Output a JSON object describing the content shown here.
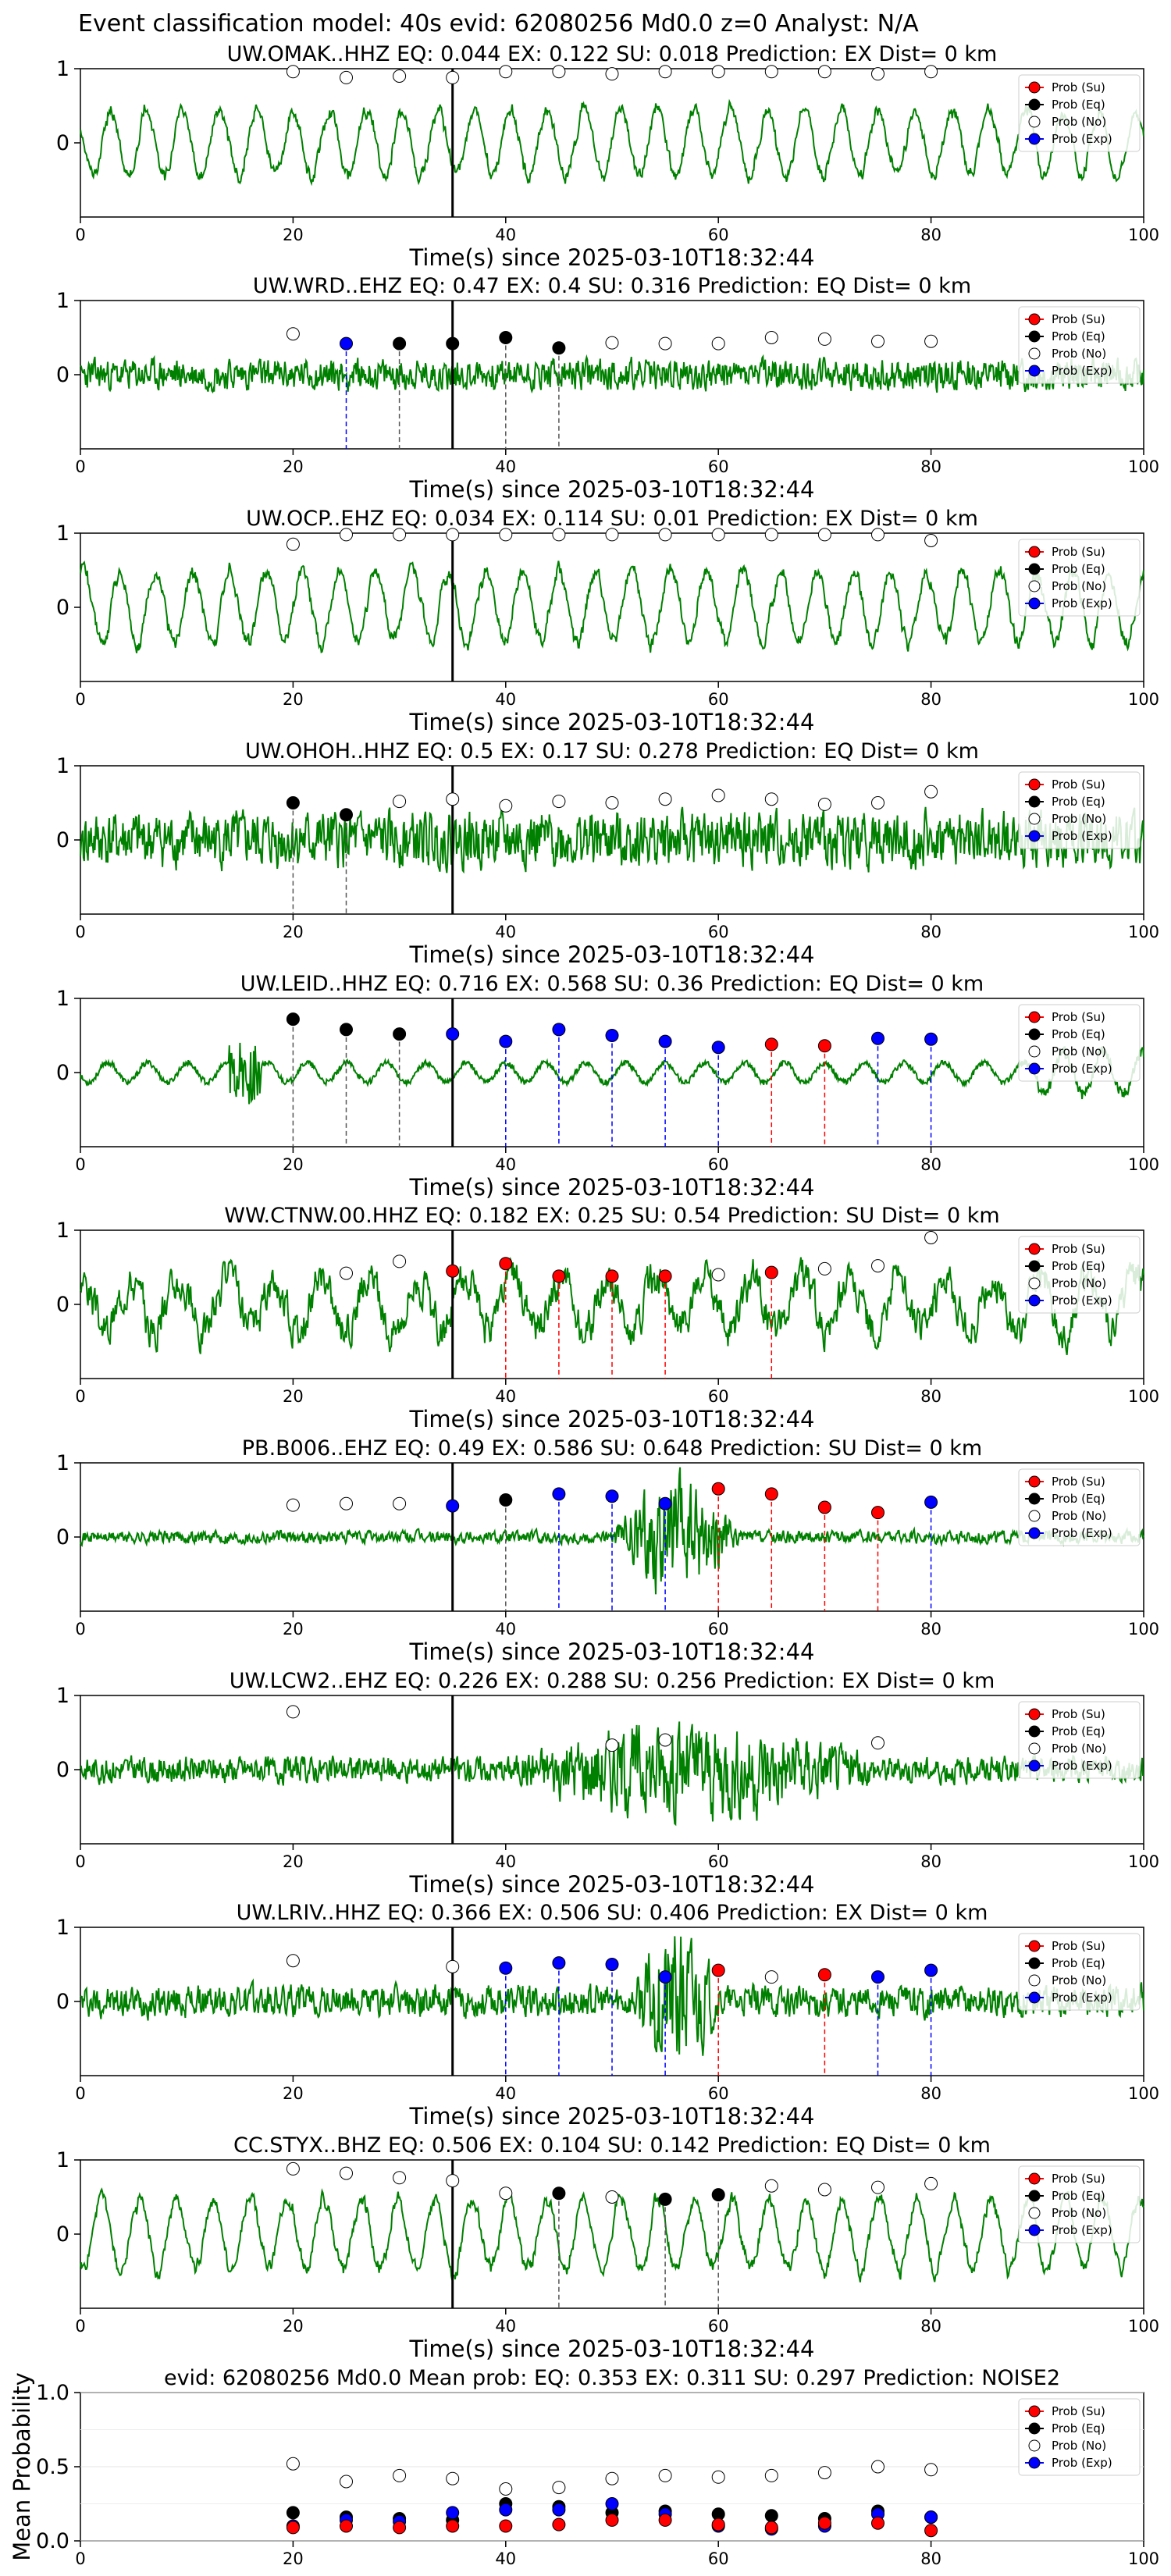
{
  "figure_title": "Event classification model: 40s evid: 62080256 Md0.0 z=0 Analyst: N/A",
  "legend_labels": [
    "Prob (Su)",
    "Prob (Eq)",
    "Prob (No)",
    "Prob (Exp)"
  ],
  "colors": {
    "waveform": "#008000",
    "su": "#ff0000",
    "eq": "#000000",
    "no": "#ffffff",
    "exp": "#0000ff",
    "origin_line": "#000000"
  },
  "chart_data": [
    {
      "type": "line",
      "title": "UW.OMAK..HHZ   EQ: 0.044  EX: 0.122  SU: 0.018   Prediction: EX    Dist= 0 km",
      "xlabel": "Time(s) since 2025-03-10T18:32:44",
      "xlim": [
        0,
        100
      ],
      "xticks": [
        0,
        20,
        40,
        60,
        80,
        100
      ],
      "ylim": [
        -1,
        1
      ],
      "yticks": [
        0,
        1
      ],
      "origin_time": 35,
      "waveform": {
        "style": "smooth",
        "amp": 0.55,
        "seed": 11
      },
      "markers": [
        {
          "t": 20,
          "p": 0.96,
          "cls": "no"
        },
        {
          "t": 25,
          "p": 0.88,
          "cls": "no"
        },
        {
          "t": 30,
          "p": 0.9,
          "cls": "no"
        },
        {
          "t": 35,
          "p": 0.88,
          "cls": "no"
        },
        {
          "t": 40,
          "p": 0.96,
          "cls": "no"
        },
        {
          "t": 45,
          "p": 0.96,
          "cls": "no"
        },
        {
          "t": 50,
          "p": 0.93,
          "cls": "no"
        },
        {
          "t": 55,
          "p": 0.96,
          "cls": "no"
        },
        {
          "t": 60,
          "p": 0.96,
          "cls": "no"
        },
        {
          "t": 65,
          "p": 0.96,
          "cls": "no"
        },
        {
          "t": 70,
          "p": 0.96,
          "cls": "no"
        },
        {
          "t": 75,
          "p": 0.93,
          "cls": "no"
        },
        {
          "t": 80,
          "p": 0.96,
          "cls": "no"
        }
      ]
    },
    {
      "type": "line",
      "title": "UW.WRD..EHZ   EQ: 0.47  EX: 0.4  SU: 0.316   Prediction: EQ    Dist= 0 km",
      "xlabel": "Time(s) since 2025-03-10T18:32:44",
      "xlim": [
        0,
        100
      ],
      "xticks": [
        0,
        20,
        40,
        60,
        80,
        100
      ],
      "ylim": [
        -1,
        1
      ],
      "yticks": [
        0,
        1
      ],
      "origin_time": 35,
      "waveform": {
        "style": "noise",
        "amp": 0.28,
        "seed": 23
      },
      "markers": [
        {
          "t": 20,
          "p": 0.55,
          "cls": "no"
        },
        {
          "t": 25,
          "p": 0.42,
          "cls": "exp"
        },
        {
          "t": 30,
          "p": 0.42,
          "cls": "eq"
        },
        {
          "t": 35,
          "p": 0.42,
          "cls": "eq"
        },
        {
          "t": 40,
          "p": 0.5,
          "cls": "eq"
        },
        {
          "t": 45,
          "p": 0.36,
          "cls": "eq"
        },
        {
          "t": 50,
          "p": 0.43,
          "cls": "no"
        },
        {
          "t": 55,
          "p": 0.42,
          "cls": "no"
        },
        {
          "t": 60,
          "p": 0.42,
          "cls": "no"
        },
        {
          "t": 65,
          "p": 0.5,
          "cls": "no"
        },
        {
          "t": 70,
          "p": 0.48,
          "cls": "no"
        },
        {
          "t": 75,
          "p": 0.45,
          "cls": "no"
        },
        {
          "t": 80,
          "p": 0.45,
          "cls": "no"
        }
      ]
    },
    {
      "type": "line",
      "title": "UW.OCP..EHZ   EQ: 0.034  EX: 0.114  SU: 0.01   Prediction: EX    Dist= 0 km",
      "xlabel": "Time(s) since 2025-03-10T18:32:44",
      "xlim": [
        0,
        100
      ],
      "xticks": [
        0,
        20,
        40,
        60,
        80,
        100
      ],
      "ylim": [
        -1,
        1
      ],
      "yticks": [
        0,
        1
      ],
      "origin_time": 35,
      "waveform": {
        "style": "smooth",
        "amp": 0.6,
        "seed": 37
      },
      "markers": [
        {
          "t": 20,
          "p": 0.85,
          "cls": "no"
        },
        {
          "t": 25,
          "p": 0.98,
          "cls": "no"
        },
        {
          "t": 30,
          "p": 0.98,
          "cls": "no"
        },
        {
          "t": 35,
          "p": 0.98,
          "cls": "no"
        },
        {
          "t": 40,
          "p": 0.98,
          "cls": "no"
        },
        {
          "t": 45,
          "p": 0.98,
          "cls": "no"
        },
        {
          "t": 50,
          "p": 0.98,
          "cls": "no"
        },
        {
          "t": 55,
          "p": 0.98,
          "cls": "no"
        },
        {
          "t": 60,
          "p": 0.98,
          "cls": "no"
        },
        {
          "t": 65,
          "p": 0.98,
          "cls": "no"
        },
        {
          "t": 70,
          "p": 0.98,
          "cls": "no"
        },
        {
          "t": 75,
          "p": 0.98,
          "cls": "no"
        },
        {
          "t": 80,
          "p": 0.9,
          "cls": "no"
        }
      ]
    },
    {
      "type": "line",
      "title": "UW.OHOH..HHZ   EQ: 0.5  EX: 0.17  SU: 0.278   Prediction: EQ    Dist= 0 km",
      "xlabel": "Time(s) since 2025-03-10T18:32:44",
      "xlim": [
        0,
        100
      ],
      "xticks": [
        0,
        20,
        40,
        60,
        80,
        100
      ],
      "ylim": [
        -1,
        1
      ],
      "yticks": [
        0,
        1
      ],
      "origin_time": 35,
      "waveform": {
        "style": "noise",
        "amp": 0.5,
        "seed": 41
      },
      "markers": [
        {
          "t": 20,
          "p": 0.5,
          "cls": "eq"
        },
        {
          "t": 25,
          "p": 0.34,
          "cls": "eq"
        },
        {
          "t": 30,
          "p": 0.52,
          "cls": "no"
        },
        {
          "t": 35,
          "p": 0.55,
          "cls": "no"
        },
        {
          "t": 40,
          "p": 0.46,
          "cls": "no"
        },
        {
          "t": 45,
          "p": 0.52,
          "cls": "no"
        },
        {
          "t": 50,
          "p": 0.5,
          "cls": "no"
        },
        {
          "t": 55,
          "p": 0.55,
          "cls": "no"
        },
        {
          "t": 60,
          "p": 0.6,
          "cls": "no"
        },
        {
          "t": 65,
          "p": 0.55,
          "cls": "no"
        },
        {
          "t": 70,
          "p": 0.48,
          "cls": "no"
        },
        {
          "t": 75,
          "p": 0.5,
          "cls": "no"
        },
        {
          "t": 80,
          "p": 0.65,
          "cls": "no"
        }
      ]
    },
    {
      "type": "line",
      "title": "UW.LEID..HHZ   EQ: 0.716  EX: 0.568  SU: 0.36   Prediction: EQ    Dist= 0 km",
      "xlabel": "Time(s) since 2025-03-10T18:32:44",
      "xlim": [
        0,
        100
      ],
      "xticks": [
        0,
        20,
        40,
        60,
        80,
        100
      ],
      "ylim": [
        -1,
        1
      ],
      "yticks": [
        0,
        1
      ],
      "origin_time": 35,
      "waveform": {
        "style": "quiet",
        "amp": 0.22,
        "seed": 53
      },
      "markers": [
        {
          "t": 20,
          "p": 0.72,
          "cls": "eq"
        },
        {
          "t": 25,
          "p": 0.58,
          "cls": "eq"
        },
        {
          "t": 30,
          "p": 0.52,
          "cls": "eq"
        },
        {
          "t": 35,
          "p": 0.52,
          "cls": "exp"
        },
        {
          "t": 40,
          "p": 0.42,
          "cls": "exp"
        },
        {
          "t": 45,
          "p": 0.58,
          "cls": "exp"
        },
        {
          "t": 50,
          "p": 0.5,
          "cls": "exp"
        },
        {
          "t": 55,
          "p": 0.42,
          "cls": "exp"
        },
        {
          "t": 60,
          "p": 0.34,
          "cls": "exp"
        },
        {
          "t": 65,
          "p": 0.38,
          "cls": "su"
        },
        {
          "t": 70,
          "p": 0.36,
          "cls": "su"
        },
        {
          "t": 75,
          "p": 0.46,
          "cls": "exp"
        },
        {
          "t": 80,
          "p": 0.45,
          "cls": "exp"
        }
      ]
    },
    {
      "type": "line",
      "title": "WW.CTNW.00.HHZ   EQ: 0.182  EX: 0.25  SU: 0.54   Prediction: SU    Dist= 0 km",
      "xlabel": "Time(s) since 2025-03-10T18:32:44",
      "xlim": [
        0,
        100
      ],
      "xticks": [
        0,
        20,
        40,
        60,
        80,
        100
      ],
      "ylim": [
        -1,
        1
      ],
      "yticks": [
        0,
        1
      ],
      "origin_time": 35,
      "waveform": {
        "style": "mixed",
        "amp": 0.5,
        "seed": 67
      },
      "markers": [
        {
          "t": 25,
          "p": 0.42,
          "cls": "no"
        },
        {
          "t": 30,
          "p": 0.58,
          "cls": "no"
        },
        {
          "t": 35,
          "p": 0.45,
          "cls": "su"
        },
        {
          "t": 40,
          "p": 0.55,
          "cls": "su"
        },
        {
          "t": 45,
          "p": 0.38,
          "cls": "su"
        },
        {
          "t": 50,
          "p": 0.38,
          "cls": "su"
        },
        {
          "t": 55,
          "p": 0.38,
          "cls": "su"
        },
        {
          "t": 60,
          "p": 0.4,
          "cls": "no"
        },
        {
          "t": 65,
          "p": 0.43,
          "cls": "su"
        },
        {
          "t": 70,
          "p": 0.48,
          "cls": "no"
        },
        {
          "t": 75,
          "p": 0.52,
          "cls": "no"
        },
        {
          "t": 80,
          "p": 0.9,
          "cls": "no"
        }
      ]
    },
    {
      "type": "line",
      "title": "PB.B006..EHZ   EQ: 0.49  EX: 0.586  SU: 0.648   Prediction: SU    Dist= 0 km",
      "xlabel": "Time(s) since 2025-03-10T18:32:44",
      "xlim": [
        0,
        100
      ],
      "xticks": [
        0,
        20,
        40,
        60,
        80,
        100
      ],
      "ylim": [
        -1,
        1
      ],
      "yticks": [
        0,
        1
      ],
      "origin_time": 35,
      "waveform": {
        "style": "burst",
        "amp": 0.12,
        "seed": 71,
        "burst": [
          50,
          62,
          0.8
        ]
      },
      "markers": [
        {
          "t": 20,
          "p": 0.43,
          "cls": "no"
        },
        {
          "t": 25,
          "p": 0.45,
          "cls": "no"
        },
        {
          "t": 30,
          "p": 0.45,
          "cls": "no"
        },
        {
          "t": 35,
          "p": 0.42,
          "cls": "exp"
        },
        {
          "t": 40,
          "p": 0.5,
          "cls": "eq"
        },
        {
          "t": 45,
          "p": 0.58,
          "cls": "exp"
        },
        {
          "t": 50,
          "p": 0.55,
          "cls": "exp"
        },
        {
          "t": 55,
          "p": 0.45,
          "cls": "exp"
        },
        {
          "t": 60,
          "p": 0.65,
          "cls": "su"
        },
        {
          "t": 65,
          "p": 0.58,
          "cls": "su"
        },
        {
          "t": 70,
          "p": 0.4,
          "cls": "su"
        },
        {
          "t": 75,
          "p": 0.33,
          "cls": "su"
        },
        {
          "t": 80,
          "p": 0.47,
          "cls": "exp"
        }
      ]
    },
    {
      "type": "line",
      "title": "UW.LCW2..EHZ   EQ: 0.226  EX: 0.288  SU: 0.256   Prediction: EX    Dist= 0 km",
      "xlabel": "Time(s) since 2025-03-10T18:32:44",
      "xlim": [
        0,
        100
      ],
      "xticks": [
        0,
        20,
        40,
        60,
        80,
        100
      ],
      "ylim": [
        -1,
        1
      ],
      "yticks": [
        0,
        1
      ],
      "origin_time": 35,
      "waveform": {
        "style": "burst",
        "amp": 0.25,
        "seed": 83,
        "burst": [
          40,
          75,
          0.55
        ]
      },
      "markers": [
        {
          "t": 20,
          "p": 0.78,
          "cls": "no"
        },
        {
          "t": 50,
          "p": 0.33,
          "cls": "no"
        },
        {
          "t": 55,
          "p": 0.4,
          "cls": "no"
        },
        {
          "t": 75,
          "p": 0.36,
          "cls": "no"
        }
      ]
    },
    {
      "type": "line",
      "title": "UW.LRIV..HHZ   EQ: 0.366  EX: 0.506  SU: 0.406   Prediction: EX    Dist= 0 km",
      "xlabel": "Time(s) since 2025-03-10T18:32:44",
      "xlim": [
        0,
        100
      ],
      "xticks": [
        0,
        20,
        40,
        60,
        80,
        100
      ],
      "ylim": [
        -1,
        1
      ],
      "yticks": [
        0,
        1
      ],
      "origin_time": 35,
      "waveform": {
        "style": "burst",
        "amp": 0.3,
        "seed": 97,
        "burst": [
          52,
          60,
          0.9
        ]
      },
      "markers": [
        {
          "t": 20,
          "p": 0.55,
          "cls": "no"
        },
        {
          "t": 35,
          "p": 0.47,
          "cls": "no"
        },
        {
          "t": 40,
          "p": 0.45,
          "cls": "exp"
        },
        {
          "t": 45,
          "p": 0.52,
          "cls": "exp"
        },
        {
          "t": 50,
          "p": 0.5,
          "cls": "exp"
        },
        {
          "t": 55,
          "p": 0.33,
          "cls": "exp"
        },
        {
          "t": 60,
          "p": 0.42,
          "cls": "su"
        },
        {
          "t": 65,
          "p": 0.33,
          "cls": "no"
        },
        {
          "t": 70,
          "p": 0.36,
          "cls": "su"
        },
        {
          "t": 75,
          "p": 0.33,
          "cls": "exp"
        },
        {
          "t": 80,
          "p": 0.42,
          "cls": "exp"
        }
      ]
    },
    {
      "type": "line",
      "title": "CC.STYX..BHZ   EQ: 0.506  EX: 0.104  SU: 0.142   Prediction: EQ    Dist= 0 km",
      "xlabel": "Time(s) since 2025-03-10T18:32:44",
      "xlim": [
        0,
        100
      ],
      "xticks": [
        0,
        20,
        40,
        60,
        80,
        100
      ],
      "ylim": [
        -1,
        1
      ],
      "yticks": [
        0,
        1
      ],
      "origin_time": 35,
      "waveform": {
        "style": "smooth",
        "amp": 0.6,
        "seed": 101
      },
      "markers": [
        {
          "t": 20,
          "p": 0.88,
          "cls": "no"
        },
        {
          "t": 25,
          "p": 0.82,
          "cls": "no"
        },
        {
          "t": 30,
          "p": 0.76,
          "cls": "no"
        },
        {
          "t": 35,
          "p": 0.72,
          "cls": "no"
        },
        {
          "t": 40,
          "p": 0.55,
          "cls": "no"
        },
        {
          "t": 45,
          "p": 0.55,
          "cls": "eq"
        },
        {
          "t": 50,
          "p": 0.5,
          "cls": "no"
        },
        {
          "t": 55,
          "p": 0.47,
          "cls": "eq"
        },
        {
          "t": 60,
          "p": 0.53,
          "cls": "eq"
        },
        {
          "t": 65,
          "p": 0.65,
          "cls": "no"
        },
        {
          "t": 70,
          "p": 0.6,
          "cls": "no"
        },
        {
          "t": 75,
          "p": 0.63,
          "cls": "no"
        },
        {
          "t": 80,
          "p": 0.68,
          "cls": "no"
        }
      ]
    },
    {
      "type": "scatter",
      "title": "evid: 62080256   Md0.0   Mean prob:   EQ: 0.353   EX: 0.311   SU: 0.297   Prediction: NOISE2",
      "xlabel": "",
      "ylabel": "Mean Probability",
      "xlim": [
        0,
        100
      ],
      "xticks": [
        0,
        20,
        40,
        60,
        80,
        100
      ],
      "ylim": [
        0,
        1
      ],
      "yticks": [
        0.0,
        0.5,
        1.0
      ],
      "ytick_labels": [
        "0.0",
        "0.5",
        "1.0"
      ],
      "x": [
        20,
        25,
        30,
        35,
        40,
        45,
        50,
        55,
        60,
        65,
        70,
        75,
        80
      ],
      "series": [
        {
          "name": "Prob (No)",
          "cls": "no",
          "values": [
            0.52,
            0.4,
            0.44,
            0.42,
            0.35,
            0.36,
            0.42,
            0.44,
            0.43,
            0.44,
            0.46,
            0.5,
            0.48
          ]
        },
        {
          "name": "Prob (Eq)",
          "cls": "eq",
          "values": [
            0.19,
            0.16,
            0.15,
            0.14,
            0.25,
            0.23,
            0.19,
            0.2,
            0.18,
            0.17,
            0.15,
            0.2,
            0.16
          ]
        },
        {
          "name": "Prob (Exp)",
          "cls": "exp",
          "values": [
            0.1,
            0.14,
            0.13,
            0.19,
            0.21,
            0.21,
            0.25,
            0.18,
            0.1,
            0.08,
            0.1,
            0.18,
            0.16
          ]
        },
        {
          "name": "Prob (Su)",
          "cls": "su",
          "values": [
            0.09,
            0.1,
            0.09,
            0.1,
            0.1,
            0.11,
            0.14,
            0.14,
            0.11,
            0.09,
            0.12,
            0.12,
            0.07
          ]
        }
      ]
    }
  ]
}
